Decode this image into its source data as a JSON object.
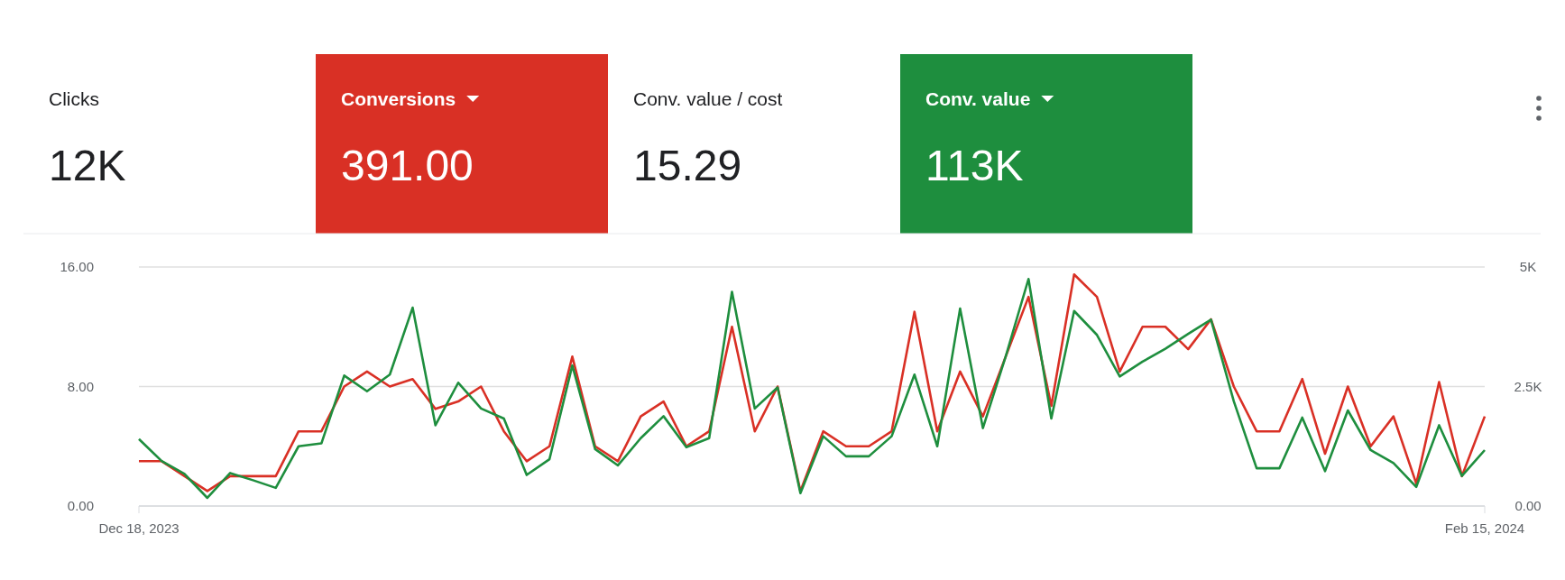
{
  "chart_data": [
    {
      "type": "other",
      "categories": [
        "Clicks",
        "Conversions",
        "Conv. value / cost",
        "Conv. value"
      ],
      "value_labels": [
        "12K",
        "391.00",
        "15.29",
        "113K"
      ],
      "colors": [
        null,
        "#d93025",
        null,
        "#1e8e3e"
      ]
    },
    {
      "type": "line",
      "x": [
        "2023-12-18",
        "2023-12-19",
        "2023-12-20",
        "2023-12-21",
        "2023-12-22",
        "2023-12-23",
        "2023-12-24",
        "2023-12-25",
        "2023-12-26",
        "2023-12-27",
        "2023-12-28",
        "2023-12-29",
        "2023-12-30",
        "2023-12-31",
        "2024-01-01",
        "2024-01-02",
        "2024-01-03",
        "2024-01-04",
        "2024-01-05",
        "2024-01-06",
        "2024-01-07",
        "2024-01-08",
        "2024-01-09",
        "2024-01-10",
        "2024-01-11",
        "2024-01-12",
        "2024-01-13",
        "2024-01-14",
        "2024-01-15",
        "2024-01-16",
        "2024-01-17",
        "2024-01-18",
        "2024-01-19",
        "2024-01-20",
        "2024-01-21",
        "2024-01-22",
        "2024-01-23",
        "2024-01-24",
        "2024-01-25",
        "2024-01-26",
        "2024-01-27",
        "2024-01-28",
        "2024-01-29",
        "2024-01-30",
        "2024-01-31",
        "2024-02-01",
        "2024-02-02",
        "2024-02-03",
        "2024-02-04",
        "2024-02-05",
        "2024-02-06",
        "2024-02-07",
        "2024-02-08",
        "2024-02-09",
        "2024-02-10",
        "2024-02-11",
        "2024-02-12",
        "2024-02-13",
        "2024-02-14",
        "2024-02-15"
      ],
      "series": [
        {
          "color": "#d93025",
          "values": [
            3,
            3,
            2,
            1,
            2,
            2,
            2,
            5,
            5,
            8,
            9,
            8,
            8.5,
            6.5,
            7,
            8,
            5,
            3,
            4,
            10,
            4,
            3,
            6,
            7,
            4,
            5,
            12,
            5,
            8,
            1,
            5,
            4,
            4,
            5,
            13,
            5,
            9,
            6,
            10,
            14,
            6.7,
            15.5,
            14,
            9,
            12,
            12,
            10.5,
            12.5,
            8,
            5,
            5,
            8.5,
            3.5,
            8,
            4,
            6,
            1.5,
            8.3,
            2,
            6
          ]
        },
        {
          "color": "#1e8e3e",
          "axis": "y2",
          "values": [
            1400,
            940,
            670,
            170,
            690,
            540,
            380,
            1250,
            1310,
            2730,
            2400,
            2750,
            4150,
            1690,
            2580,
            2040,
            1830,
            650,
            980,
            2940,
            1190,
            850,
            1420,
            1880,
            1230,
            1420,
            4480,
            2040,
            2480,
            270,
            1460,
            1040,
            1040,
            1460,
            2750,
            1250,
            4130,
            1630,
            3130,
            4750,
            1830,
            4080,
            3580,
            2710,
            3020,
            3290,
            3600,
            3900,
            2190,
            790,
            790,
            1850,
            730,
            2000,
            1170,
            900,
            400,
            1690,
            630,
            1170
          ]
        }
      ],
      "xlim": [
        "2023-12-18",
        "2024-02-15"
      ],
      "xticks": [
        {
          "value": "2023-12-18",
          "label": "Dec 18, 2023"
        },
        {
          "value": "2024-02-15",
          "label": "Feb 15, 2024"
        }
      ],
      "ylim": [
        0,
        16
      ],
      "yticks": [
        {
          "value": 0,
          "label": "0.00"
        },
        {
          "value": 8,
          "label": "8.00"
        },
        {
          "value": 16,
          "label": "16.00"
        }
      ],
      "y2lim": [
        0,
        5000
      ],
      "y2ticks": [
        {
          "value": 0,
          "label": "0.00"
        },
        {
          "value": 2500,
          "label": "2.5K"
        },
        {
          "value": 5000,
          "label": "5K"
        }
      ],
      "grid": "y",
      "marker": "none"
    }
  ]
}
